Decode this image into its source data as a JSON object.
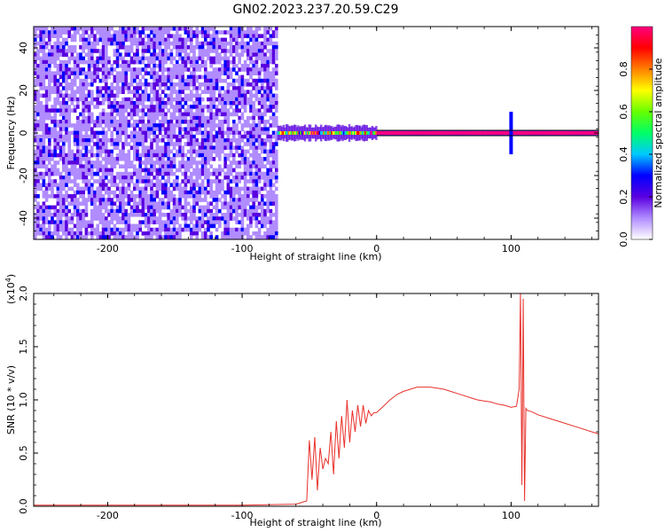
{
  "title": "GN02.2023.237.20.59.C29",
  "chart_data": [
    {
      "type": "heatmap",
      "xlabel": "Height of straight line (km)",
      "ylabel": "Frequency (Hz)",
      "xlim": [
        -255,
        165
      ],
      "ylim": [
        -50,
        50
      ],
      "x_ticks": [
        -200,
        -100,
        0,
        100
      ],
      "x_tick_labels": [
        "-200",
        "-100",
        "0",
        "100"
      ],
      "y_ticks": [
        -40,
        -20,
        0,
        20,
        40
      ],
      "y_tick_labels": [
        "-40",
        "-20",
        "0",
        "20",
        "40"
      ],
      "noise_region_x": [
        -255,
        -74
      ],
      "signal_band": {
        "x": [
          -74,
          165
        ],
        "frequency": 0
      },
      "colorbar": {
        "label": "Normalized spectral amplitude",
        "range": [
          0,
          1
        ],
        "ticks": [
          0.0,
          0.2,
          0.4,
          0.6,
          0.8
        ],
        "tick_labels": [
          "0.0",
          "0.2",
          "0.4",
          "0.6",
          "0.8"
        ],
        "colors": [
          "#ffffff",
          "#b08cff",
          "#5a00e0",
          "#0000ff",
          "#00c8ff",
          "#00ff66",
          "#66ff00",
          "#ffff00",
          "#ff8000",
          "#ff0000",
          "#ff0080"
        ]
      },
      "grid": false
    },
    {
      "type": "line",
      "xlabel": "Height of straight line (km)",
      "ylabel": "SNR (10 * v/v)",
      "y_multiplier": "(x10",
      "y_multiplier_exp": "4",
      "y_multiplier_close": ")",
      "xlim": [
        -255,
        165
      ],
      "ylim": [
        0,
        2.0
      ],
      "x_ticks": [
        -200,
        -100,
        0,
        100
      ],
      "x_tick_labels": [
        "-200",
        "-100",
        "0",
        "100"
      ],
      "y_ticks": [
        0.0,
        0.5,
        1.0,
        1.5,
        2.0
      ],
      "y_tick_labels": [
        "0.0",
        "0.5",
        "1.0",
        "1.5",
        "2.0"
      ],
      "series": [
        {
          "color": "#e8302a",
          "x": [
            -255,
            -200,
            -150,
            -100,
            -60,
            -52,
            -50,
            -48,
            -46,
            -44,
            -42,
            -40,
            -38,
            -36,
            -34,
            -32,
            -30,
            -28,
            -26,
            -24,
            -22,
            -20,
            -18,
            -16,
            -14,
            -12,
            -10,
            -8,
            -6,
            -4,
            -2,
            0,
            5,
            10,
            15,
            20,
            25,
            30,
            35,
            40,
            45,
            50,
            55,
            60,
            65,
            70,
            75,
            80,
            85,
            90,
            95,
            100,
            104,
            106,
            107,
            108,
            109,
            110,
            111,
            112,
            115,
            120,
            130,
            140,
            150,
            160,
            165
          ],
          "y": [
            0.01,
            0.01,
            0.01,
            0.01,
            0.02,
            0.05,
            0.62,
            0.25,
            0.65,
            0.15,
            0.55,
            0.35,
            0.45,
            0.4,
            0.7,
            0.3,
            0.8,
            0.45,
            0.85,
            0.55,
            1.0,
            0.6,
            0.9,
            0.7,
            0.95,
            0.75,
            0.95,
            0.78,
            0.9,
            0.85,
            0.88,
            0.88,
            0.94,
            1.0,
            1.05,
            1.08,
            1.1,
            1.12,
            1.12,
            1.12,
            1.11,
            1.1,
            1.08,
            1.06,
            1.04,
            1.02,
            1.0,
            0.99,
            0.98,
            0.96,
            0.95,
            0.93,
            0.94,
            1.1,
            2.0,
            0.2,
            1.95,
            0.05,
            0.92,
            0.9,
            0.89,
            0.86,
            0.82,
            0.78,
            0.74,
            0.7,
            0.68
          ]
        }
      ],
      "grid": false
    }
  ]
}
